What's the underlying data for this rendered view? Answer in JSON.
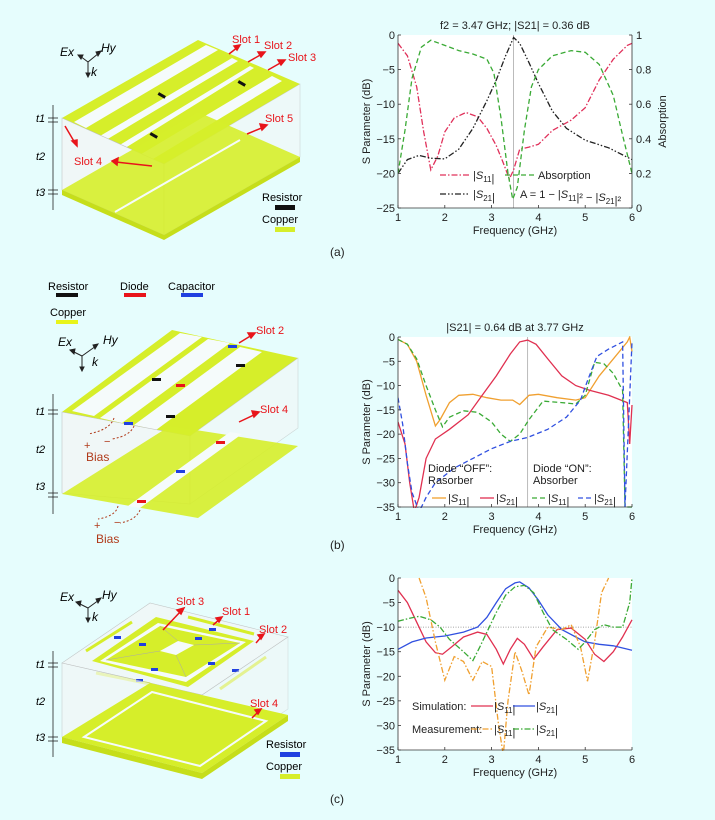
{
  "colors": {
    "background": "#e6fdfd",
    "copper": "#d6ee2a",
    "resistor_black": "#111111",
    "diode_red": "#e8141a",
    "capacitor_blue": "#2040e0",
    "slot_label_red": "#e8141a",
    "bias_brown": "#b03a1a"
  },
  "panels": [
    {
      "id": "a",
      "letter": "(a)",
      "diagram": {
        "axes": {
          "ex": "Ex",
          "hy": "Hy",
          "k": "k"
        },
        "thickness": [
          "t1",
          "t2",
          "t3"
        ],
        "slots": [
          "Slot 1",
          "Slot 2",
          "Slot 3",
          "Slot 4",
          "Slot 5"
        ],
        "legend": [
          {
            "label": "Resistor",
            "color": "#111111"
          },
          {
            "label": "Copper",
            "color": "#d6ee2a"
          }
        ]
      }
    },
    {
      "id": "b",
      "letter": "(b)",
      "diagram": {
        "axes": {
          "ex": "Ex",
          "hy": "Hy",
          "k": "k"
        },
        "thickness": [
          "t1",
          "t2",
          "t3"
        ],
        "slots": [
          "Slot 2",
          "Slot 4"
        ],
        "bias": [
          "Bias",
          "Bias"
        ],
        "bias_signs": {
          "plus": "+",
          "minus": "−"
        },
        "legend": [
          {
            "label": "Resistor",
            "color": "#111111"
          },
          {
            "label": "Diode",
            "color": "#e8141a"
          },
          {
            "label": "Capacitor",
            "color": "#2040e0"
          },
          {
            "label": "Copper",
            "color": "#d6ee2a"
          }
        ]
      }
    },
    {
      "id": "c",
      "letter": "(c)",
      "diagram": {
        "axes": {
          "ex": "Ex",
          "hy": "Hy",
          "k": "k"
        },
        "thickness": [
          "t1",
          "t2",
          "t3"
        ],
        "slots": [
          "Slot 3",
          "Slot 1",
          "Slot 2",
          "Slot 4"
        ],
        "legend": [
          {
            "label": "Resistor",
            "color": "#2040e0"
          },
          {
            "label": "Copper",
            "color": "#d6ee2a"
          }
        ]
      }
    }
  ],
  "chart_data": [
    {
      "type": "line",
      "panel": "a",
      "title": "f2 = 3.47 GHz; |S21| = 0.36 dB",
      "xlabel": "Frequency (GHz)",
      "ylabel": "S Parameter (dB)",
      "y2label": "Absorption",
      "xlim": [
        1,
        6
      ],
      "ylim": [
        -25,
        0
      ],
      "y2lim": [
        0,
        1
      ],
      "xticks": [
        1,
        2,
        3,
        4,
        5,
        6
      ],
      "yticks": [
        0,
        -5,
        -10,
        -15,
        -20,
        -25
      ],
      "y2ticks": [
        1,
        0.8,
        0.6,
        0.4,
        0.2,
        0
      ],
      "vline_x": 3.47,
      "series": [
        {
          "name": "|S11|",
          "axis": "left",
          "color": "#e0305a",
          "dash": "dashdot",
          "x": [
            1,
            1.2,
            1.4,
            1.55,
            1.7,
            1.85,
            2.0,
            2.2,
            2.45,
            2.7,
            2.9,
            3.1,
            3.25,
            3.38,
            3.47,
            3.6,
            3.8,
            4.0,
            4.3,
            4.7,
            5.0,
            5.3,
            5.6,
            5.9,
            6.0
          ],
          "y": [
            -1.2,
            -3,
            -7.5,
            -14,
            -19.5,
            -17.5,
            -14,
            -12,
            -11.2,
            -11.8,
            -13.5,
            -16,
            -18.5,
            -20.8,
            -19.5,
            -16.5,
            -16.2,
            -15.8,
            -13.8,
            -12.3,
            -10.5,
            -6.5,
            -3.5,
            -1.5,
            -1.2
          ]
        },
        {
          "name": "|S21|",
          "axis": "left",
          "color": "#222222",
          "dash": "dashdotdot",
          "x": [
            1,
            1.2,
            1.45,
            1.7,
            2.0,
            2.3,
            2.6,
            2.9,
            3.1,
            3.3,
            3.47,
            3.6,
            3.8,
            4.0,
            4.3,
            4.6,
            5.0,
            5.5,
            6.0
          ],
          "y": [
            -20,
            -18,
            -17.4,
            -17.8,
            -17.9,
            -16.5,
            -13.5,
            -9.5,
            -6.5,
            -3,
            -0.36,
            -1.2,
            -4,
            -7,
            -11,
            -13.5,
            -15.2,
            -16.3,
            -18
          ]
        },
        {
          "name": "Absorption",
          "axis": "right",
          "color": "#3aaa35",
          "dash": "dash",
          "x": [
            1,
            1.15,
            1.3,
            1.5,
            1.7,
            2.0,
            2.3,
            2.6,
            2.9,
            3.05,
            3.2,
            3.35,
            3.45,
            3.55,
            3.7,
            3.85,
            4.0,
            4.3,
            4.7,
            5.0,
            5.3,
            5.6,
            5.8,
            6.0
          ],
          "y": [
            0.2,
            0.45,
            0.75,
            0.93,
            0.97,
            0.94,
            0.91,
            0.89,
            0.86,
            0.78,
            0.52,
            0.2,
            0.05,
            0.12,
            0.45,
            0.7,
            0.8,
            0.88,
            0.91,
            0.9,
            0.83,
            0.65,
            0.42,
            0.2
          ]
        }
      ],
      "legend": [
        {
          "label": "|S11|",
          "sub": "11"
        },
        {
          "label": "|S21|",
          "sub": "21"
        },
        {
          "label": "Absorption"
        },
        {
          "label": "A = 1 − |S11|² − |S21|²"
        }
      ]
    },
    {
      "type": "line",
      "panel": "b",
      "title": "|S21| = 0.64 dB at 3.77 GHz",
      "xlabel": "Frequency (GHz)",
      "ylabel": "S Parameter (dB)",
      "xlim": [
        1,
        6
      ],
      "ylim": [
        -35,
        0
      ],
      "xticks": [
        1,
        2,
        3,
        4,
        5,
        6
      ],
      "yticks": [
        0,
        -5,
        -10,
        -15,
        -20,
        -25,
        -30,
        -35
      ],
      "vline_x": 3.77,
      "legend_groups": [
        {
          "title": "Diode “OFF”:",
          "subtitle": "Rasorber",
          "entries": [
            "|S11|",
            "|S21|"
          ]
        },
        {
          "title": "Diode “ON”:",
          "subtitle": "Absorber",
          "entries": [
            "|S11|",
            "|S21|"
          ]
        }
      ],
      "series": [
        {
          "name": "OFF |S11|",
          "color": "#f0a030",
          "dash": "solid",
          "x": [
            1,
            1.2,
            1.4,
            1.6,
            1.8,
            1.9,
            2.1,
            2.3,
            2.6,
            2.9,
            3.2,
            3.45,
            3.6,
            3.8,
            4.0,
            4.4,
            4.8,
            5.0,
            5.3,
            5.6,
            5.9,
            5.95,
            6.0
          ],
          "y": [
            -0.5,
            -1.5,
            -5,
            -12,
            -18.3,
            -17,
            -13.5,
            -12,
            -11.8,
            -12.5,
            -13,
            -13,
            -13.9,
            -12,
            -11.8,
            -12.5,
            -13,
            -12.5,
            -8,
            -4.5,
            -1,
            0,
            -3
          ]
        },
        {
          "name": "OFF |S21|",
          "color": "#e03050",
          "dash": "solid",
          "x": [
            1,
            1.15,
            1.25,
            1.35,
            1.45,
            1.6,
            1.8,
            2.1,
            2.5,
            2.8,
            3.1,
            3.4,
            3.6,
            3.77,
            3.95,
            4.2,
            4.5,
            4.8,
            5.1,
            5.5,
            5.9,
            5.95,
            6.0
          ],
          "y": [
            -17.5,
            -22,
            -30,
            -36,
            -33,
            -25,
            -21,
            -19,
            -16,
            -12,
            -8,
            -3.5,
            -1,
            -0.64,
            -1.5,
            -4.5,
            -8,
            -10,
            -11,
            -12,
            -13.5,
            -22,
            -14
          ]
        },
        {
          "name": "ON |S11|",
          "color": "#3aaa35",
          "dash": "dash",
          "x": [
            1,
            1.2,
            1.4,
            1.6,
            1.8,
            1.95,
            2.1,
            2.4,
            2.7,
            3.0,
            3.2,
            3.4,
            3.6,
            3.8,
            4.1,
            4.5,
            4.8,
            5.0,
            5.2,
            5.4,
            5.6,
            5.8,
            5.85,
            6.0
          ],
          "y": [
            -0.5,
            -1.5,
            -4.5,
            -10,
            -15,
            -18.5,
            -16.5,
            -15.2,
            -15.5,
            -17.5,
            -20,
            -21.5,
            -20,
            -17,
            -13.2,
            -13.5,
            -13.8,
            -12,
            -5.2,
            -5.5,
            -7.5,
            -11,
            -35,
            -35
          ]
        },
        {
          "name": "ON |S21|",
          "color": "#3050e0",
          "dash": "dash",
          "x": [
            1,
            1.1,
            1.2,
            1.3,
            1.45,
            1.6,
            1.8,
            2.2,
            2.6,
            3.0,
            3.4,
            3.77,
            4.2,
            4.6,
            4.9,
            5.05,
            5.25,
            5.5,
            5.8,
            5.85,
            6.0
          ],
          "y": [
            -12.5,
            -18,
            -26,
            -32,
            -36,
            -33,
            -30,
            -27,
            -25,
            -23,
            -21.5,
            -20.7,
            -19,
            -16.5,
            -13,
            -9,
            -4,
            -2.5,
            -1,
            -35,
            -1
          ]
        }
      ]
    },
    {
      "type": "line",
      "panel": "c",
      "title": "",
      "xlabel": "Frequency (GHz)",
      "ylabel": "S Parameter (dB)",
      "xlim": [
        1,
        6
      ],
      "ylim": [
        -35,
        0
      ],
      "xticks": [
        1,
        2,
        3,
        4,
        5,
        6
      ],
      "yticks": [
        0,
        -5,
        -10,
        -15,
        -20,
        -25,
        -30,
        -35
      ],
      "hline_y": -10,
      "legend_rows": [
        {
          "label": "Simulation:",
          "entries": [
            "|S11|",
            "|S21|"
          ]
        },
        {
          "label": "Measurement:",
          "entries": [
            "|S11|",
            "|S21|"
          ]
        }
      ],
      "series": [
        {
          "name": "Simulation |S11|",
          "color": "#e03050",
          "dash": "solid",
          "x": [
            1,
            1.2,
            1.4,
            1.6,
            1.8,
            1.95,
            2.15,
            2.4,
            2.7,
            2.9,
            3.1,
            3.25,
            3.4,
            3.55,
            3.7,
            3.9,
            4.1,
            4.4,
            4.7,
            5.0,
            5.2,
            5.4,
            5.6,
            5.8,
            6.0
          ],
          "y": [
            -2.5,
            -5,
            -9,
            -13,
            -15.2,
            -15.5,
            -14,
            -12,
            -11,
            -11.5,
            -14.5,
            -17.5,
            -14.5,
            -12.3,
            -13.5,
            -16.5,
            -14,
            -10.5,
            -10.2,
            -12.5,
            -15.5,
            -17,
            -15,
            -12,
            -8.5
          ]
        },
        {
          "name": "Simulation |S21|",
          "color": "#3050e0",
          "dash": "solid",
          "x": [
            1,
            1.3,
            1.6,
            2.0,
            2.4,
            2.7,
            2.9,
            3.1,
            3.3,
            3.5,
            3.6,
            3.8,
            4.0,
            4.2,
            4.5,
            4.8,
            5.0,
            5.3,
            5.6,
            6.0
          ],
          "y": [
            -14.5,
            -13,
            -12.2,
            -11.8,
            -11,
            -10,
            -8,
            -5,
            -2.2,
            -1,
            -0.8,
            -2,
            -4.5,
            -7.5,
            -10.5,
            -12,
            -13,
            -13.5,
            -13.8,
            -14.7
          ]
        },
        {
          "name": "Measurement |S11|",
          "color": "#f0a030",
          "dash": "dashdot",
          "x": [
            1.45,
            1.6,
            1.8,
            2.0,
            2.2,
            2.4,
            2.6,
            2.8,
            3.0,
            3.15,
            3.25,
            3.35,
            3.5,
            3.65,
            3.8,
            3.95,
            4.2,
            4.5,
            4.7,
            4.9,
            5.05,
            5.2,
            5.35,
            5.5
          ],
          "y": [
            0,
            -4,
            -13,
            -20.8,
            -16,
            -17,
            -20.8,
            -17,
            -18,
            -30,
            -36,
            -25,
            -15,
            -19,
            -23.8,
            -14,
            -10,
            -10.5,
            -9.5,
            -14,
            -21,
            -13,
            -3,
            0
          ]
        },
        {
          "name": "Measurement |S21|",
          "color": "#3aaa35",
          "dash": "dashdot",
          "x": [
            1,
            1.2,
            1.45,
            1.7,
            1.9,
            2.1,
            2.4,
            2.6,
            2.75,
            2.9,
            3.1,
            3.3,
            3.5,
            3.7,
            3.9,
            4.1,
            4.3,
            4.6,
            4.85,
            5.0,
            5.2,
            5.4,
            5.6,
            5.8,
            5.95,
            6.0
          ],
          "y": [
            -8.8,
            -8.3,
            -7.8,
            -8.5,
            -10,
            -12.5,
            -15,
            -16.8,
            -14,
            -11,
            -7,
            -3.5,
            -1.8,
            -1.5,
            -3,
            -7,
            -10.5,
            -12.5,
            -14.5,
            -13,
            -10.5,
            -9.5,
            -10,
            -10,
            -5,
            0
          ]
        }
      ]
    }
  ]
}
